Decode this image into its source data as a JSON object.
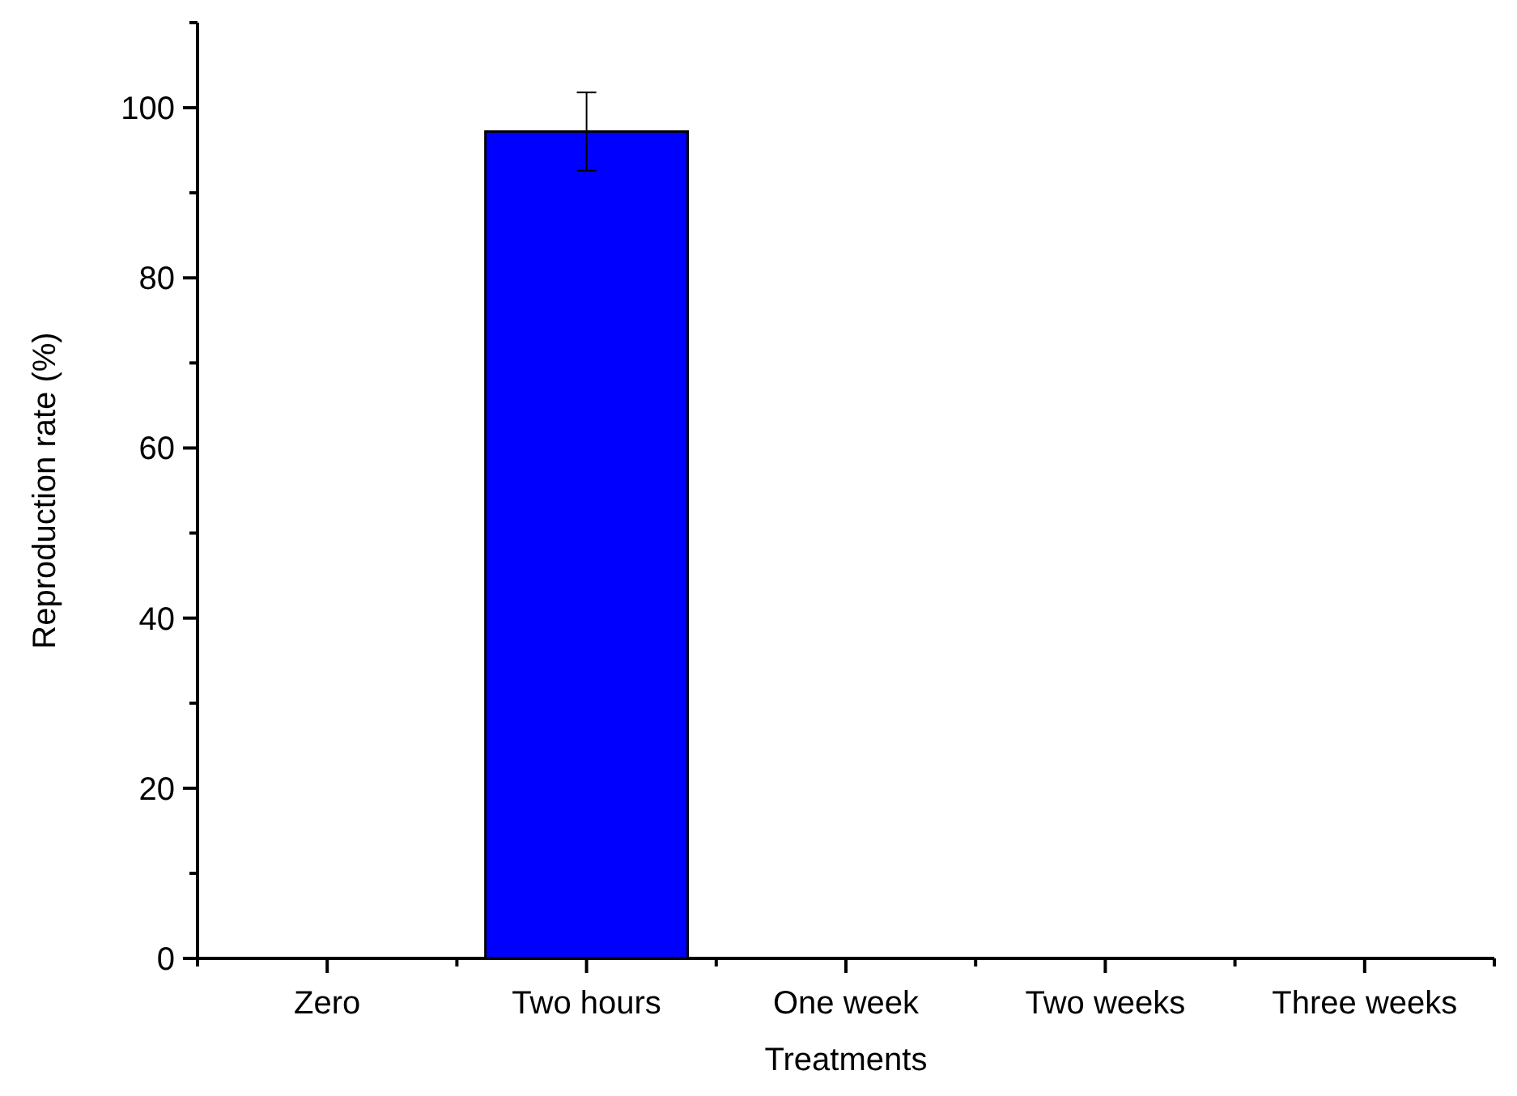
{
  "chart_data": {
    "type": "bar",
    "xlabel": "Treatments",
    "ylabel": "Reproduction rate (%)",
    "categories": [
      "Zero",
      "Two hours",
      "One week",
      "Two weeks",
      "Three weeks"
    ],
    "values": [
      0,
      97.2,
      0,
      0,
      0
    ],
    "errors": [
      null,
      4.6,
      null,
      null,
      null
    ],
    "color": "#0000ff",
    "ylim": [
      0,
      110
    ],
    "yticks": [
      0,
      {
        "value": 10,
        "label": null
      },
      20,
      {
        "value": 30,
        "label": null
      },
      40,
      {
        "value": 50,
        "label": null
      },
      60,
      {
        "value": 70,
        "label": null
      },
      80,
      {
        "value": 90,
        "label": null
      },
      100
    ],
    "grid": false
  }
}
